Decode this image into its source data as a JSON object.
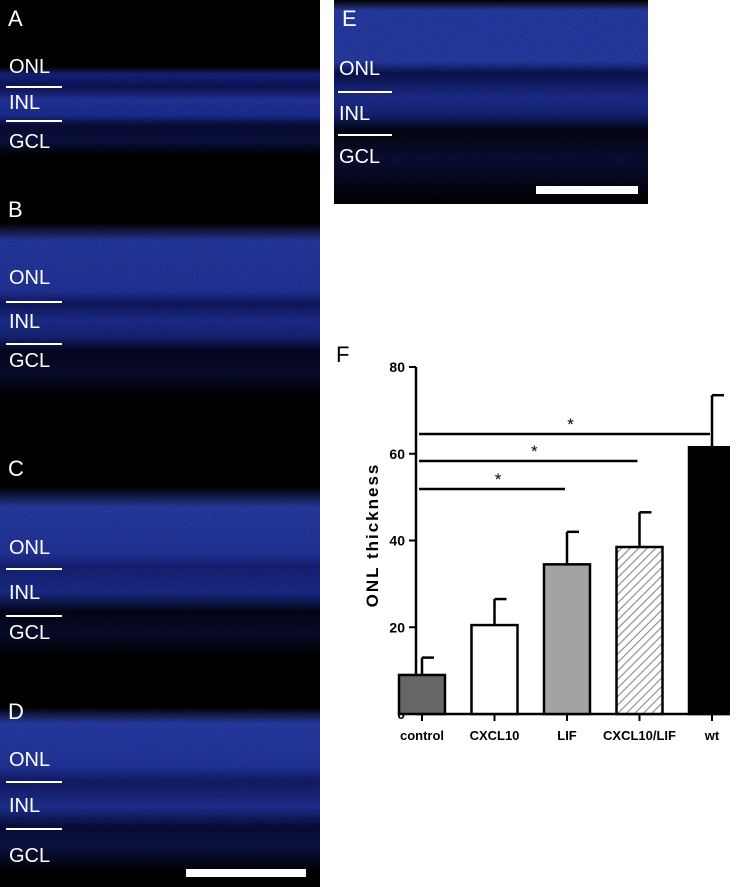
{
  "panels": {
    "a": {
      "label": "A",
      "layers": [
        "ONL",
        "INL",
        "GCL"
      ]
    },
    "b": {
      "label": "B",
      "layers": [
        "ONL",
        "INL",
        "GCL"
      ]
    },
    "c": {
      "label": "C",
      "layers": [
        "ONL",
        "INL",
        "GCL"
      ]
    },
    "d": {
      "label": "D",
      "layers": [
        "ONL",
        "INL",
        "GCL"
      ]
    },
    "e": {
      "label": "E",
      "layers": [
        "ONL",
        "INL",
        "GCL"
      ]
    },
    "f": {
      "label": "F"
    }
  },
  "chart_data": {
    "type": "bar",
    "categories": [
      "control",
      "CXCL10",
      "LIF",
      "CXCL10/LIF",
      "wt"
    ],
    "values": [
      9,
      20.5,
      34.5,
      38.5,
      61.5
    ],
    "error": [
      4,
      6,
      7.5,
      8,
      12
    ],
    "fills": [
      "#666666",
      "#ffffff",
      "#a3a3a6",
      "hatch",
      "#000000"
    ],
    "ylabel": "ONL thickness",
    "xlabel": "",
    "ylim": [
      0,
      80
    ],
    "yticks": [
      0,
      20,
      40,
      60,
      80
    ],
    "significance": [
      {
        "from": 0,
        "to": 4,
        "label": "*"
      },
      {
        "from": 0,
        "to": 3,
        "label": "*"
      },
      {
        "from": 0,
        "to": 2,
        "label": "*"
      }
    ]
  }
}
